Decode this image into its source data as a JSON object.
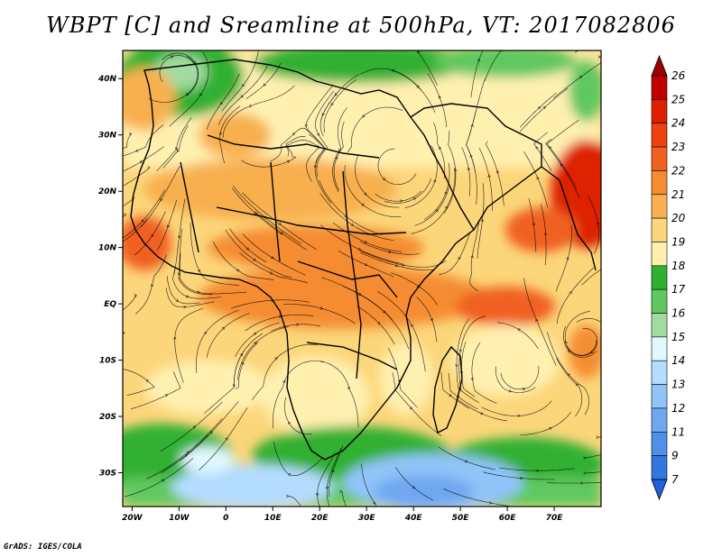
{
  "title": "WBPT [C] and Sreamline at 500hPa, VT: 2017082806",
  "credit": "GrADS: IGES/COLA",
  "map": {
    "lon_range": [
      -22,
      80
    ],
    "lat_range": [
      -36,
      45
    ],
    "lat_ticks": [
      {
        "value": 40,
        "label": "40N"
      },
      {
        "value": 30,
        "label": "30N"
      },
      {
        "value": 20,
        "label": "20N"
      },
      {
        "value": 10,
        "label": "10N"
      },
      {
        "value": 0,
        "label": "EQ"
      },
      {
        "value": -10,
        "label": "10S"
      },
      {
        "value": -20,
        "label": "20S"
      },
      {
        "value": -30,
        "label": "30S"
      }
    ],
    "lon_ticks": [
      {
        "value": -20,
        "label": "20W"
      },
      {
        "value": -10,
        "label": "10W"
      },
      {
        "value": 0,
        "label": "0"
      },
      {
        "value": 10,
        "label": "10E"
      },
      {
        "value": 20,
        "label": "20E"
      },
      {
        "value": 30,
        "label": "30E"
      },
      {
        "value": 40,
        "label": "40E"
      },
      {
        "value": 50,
        "label": "50E"
      },
      {
        "value": 60,
        "label": "60E"
      },
      {
        "value": 70,
        "label": "70E"
      }
    ]
  },
  "colorbar": {
    "levels": [
      "26",
      "25",
      "24",
      "23",
      "22",
      "21",
      "20",
      "19",
      "18",
      "17",
      "16",
      "15",
      "14",
      "13",
      "12",
      "11",
      "9",
      "7"
    ],
    "colors": [
      "#c00000",
      "#dd2000",
      "#ee4010",
      "#f06020",
      "#f58c30",
      "#f8b050",
      "#fcd67a",
      "#fff0b0",
      "#30b030",
      "#60c860",
      "#a0dca0",
      "#e0f8ff",
      "#b4dcff",
      "#90c4f8",
      "#70a8f0",
      "#5090e8",
      "#3078e0"
    ],
    "top_arrow_color": "#a00000",
    "bottom_arrow_color": "#2060d8"
  }
}
